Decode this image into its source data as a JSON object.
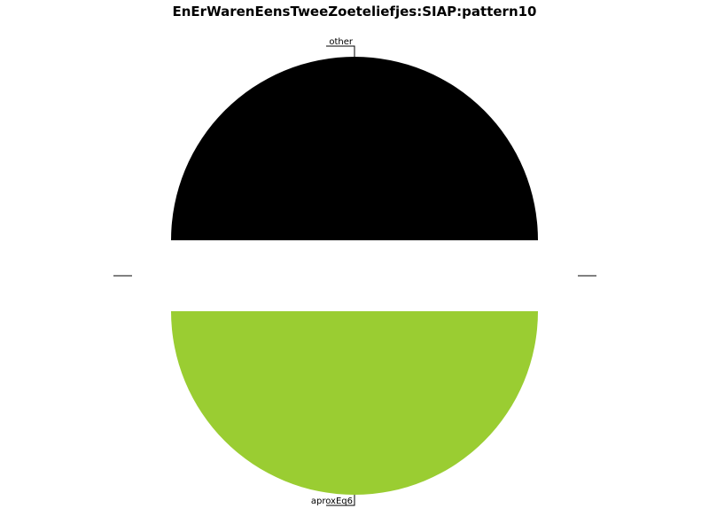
{
  "chart_data": {
    "type": "pie",
    "title": "EnErWarenEensTweeZoeteliefjes:SIAP:pattern10",
    "slices": [
      {
        "label": "other",
        "value": 50,
        "color": "#000000"
      },
      {
        "label": "aproxEq6",
        "value": 50,
        "color": "#9acd32"
      }
    ]
  }
}
